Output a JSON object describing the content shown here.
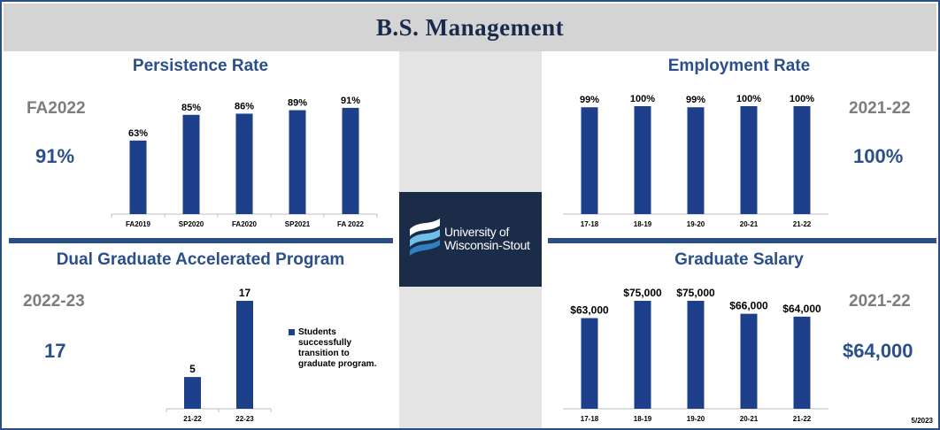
{
  "header": {
    "title": "B.S. Management"
  },
  "logo": {
    "line1": "University of",
    "line2": "Wisconsin-Stout"
  },
  "footnote": "5/2023",
  "colors": {
    "bar": "#1e3f8a",
    "title": "#2a4f8a",
    "label": "#7d7d7d"
  },
  "panels": {
    "persistence": {
      "title": "Persistence Rate",
      "side_label": "FA2022",
      "side_value": "91%"
    },
    "employment": {
      "title": "Employment Rate",
      "side_label": "2021-22",
      "side_value": "100%"
    },
    "dual": {
      "title": "Dual Graduate Accelerated Program",
      "side_label": "2022-23",
      "side_value": "17",
      "legend": "Students successfully transition to graduate program."
    },
    "salary": {
      "title": "Graduate Salary",
      "side_label": "2021-22",
      "side_value": "$64,000"
    }
  },
  "chart_data": [
    {
      "id": "persistence",
      "type": "bar",
      "title": "Persistence Rate",
      "categories": [
        "FA2019",
        "SP2020",
        "FA2020",
        "SP2021",
        "FA 2022"
      ],
      "values": [
        63,
        85,
        86,
        89,
        91
      ],
      "data_labels": [
        "63%",
        "85%",
        "86%",
        "89%",
        "91%"
      ],
      "unit": "%",
      "ylim": [
        0,
        100
      ],
      "grid": false
    },
    {
      "id": "employment",
      "type": "bar",
      "title": "Employment Rate",
      "categories": [
        "17-18",
        "18-19",
        "19-20",
        "20-21",
        "21-22"
      ],
      "values": [
        99,
        100,
        99,
        100,
        100
      ],
      "data_labels": [
        "99%",
        "100%",
        "99%",
        "100%",
        "100%"
      ],
      "unit": "%",
      "ylim": [
        0,
        100
      ],
      "grid": false
    },
    {
      "id": "dual",
      "type": "bar",
      "title": "Dual Graduate Accelerated Program",
      "categories": [
        "21-22",
        "22-23"
      ],
      "values": [
        5,
        17
      ],
      "data_labels": [
        "5",
        "17"
      ],
      "ylim": [
        0,
        17
      ],
      "legend": {
        "entries": [
          "Students successfully transition to graduate program."
        ],
        "placement": "right"
      },
      "grid": false
    },
    {
      "id": "salary",
      "type": "bar",
      "title": "Graduate Salary",
      "categories": [
        "17-18",
        "18-19",
        "19-20",
        "20-21",
        "21-22"
      ],
      "values": [
        63000,
        75000,
        75000,
        66000,
        64000
      ],
      "data_labels": [
        "$63,000",
        "$75,000",
        "$75,000",
        "$66,000",
        "$64,000"
      ],
      "unit": "$",
      "ylim": [
        0,
        75000
      ],
      "grid": false
    }
  ]
}
